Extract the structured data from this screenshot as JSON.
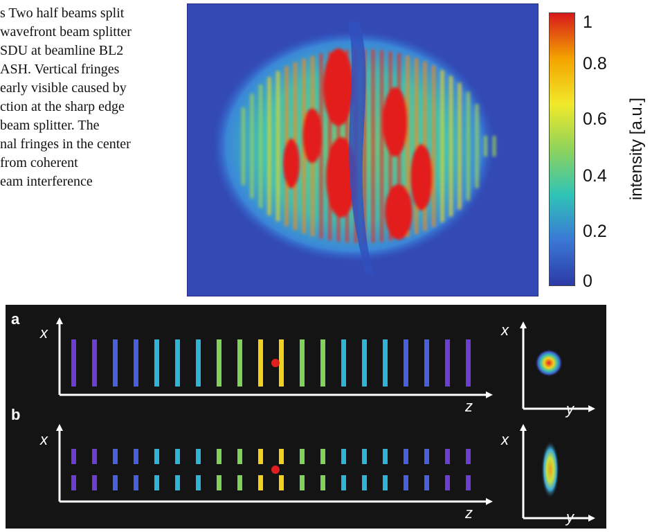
{
  "caption": {
    "lines": [
      "s  Two half beams split",
      "wavefront beam splitter",
      "SDU at beamline BL2",
      "ASH. Vertical fringes",
      "early visible caused by",
      "ction at the sharp edge",
      " beam splitter. The",
      "nal fringes in the center",
      " from coherent",
      "eam interference"
    ]
  },
  "colorbar": {
    "ticks": [
      "1",
      "0.8",
      "0.6",
      "0.4",
      "0.2",
      "0"
    ],
    "label": "intensity [a.u.]",
    "colors": [
      "#d7191c",
      "#f4a300",
      "#f1e92a",
      "#8fd35b",
      "#2fc4b6",
      "#3a78d6",
      "#2d3aa6"
    ]
  },
  "panels": {
    "a": {
      "label": "a",
      "x": "x",
      "z": "z",
      "y": "y"
    },
    "b": {
      "label": "b",
      "x": "x",
      "z": "z",
      "y": "y"
    }
  }
}
